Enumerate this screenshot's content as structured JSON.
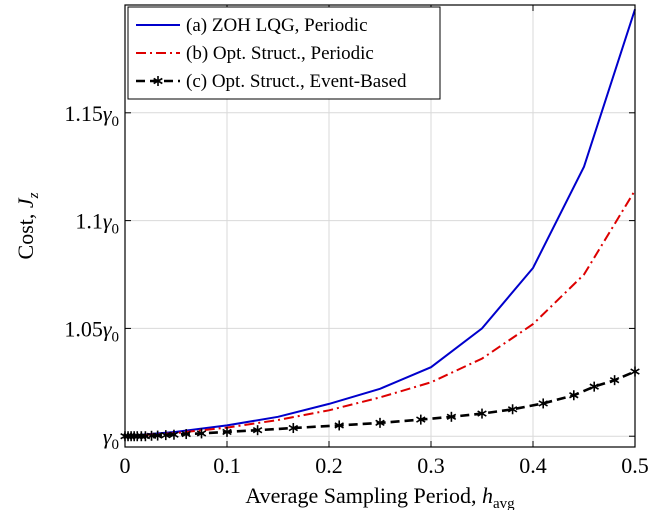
{
  "chart_data": {
    "type": "line",
    "xlabel_text": "Average Sampling Period,",
    "xlabel_symbol": "h",
    "xlabel_sub": "avg",
    "ylabel_text": "Cost,",
    "ylabel_symbol": "J",
    "ylabel_sub": "z",
    "xlim": [
      0,
      0.5
    ],
    "ylim": [
      0.995,
      1.2
    ],
    "x_ticks": [
      0,
      0.1,
      0.2,
      0.3,
      0.4,
      0.5
    ],
    "x_tick_labels": [
      "0",
      "0.1",
      "0.2",
      "0.3",
      "0.4",
      "0.5"
    ],
    "y_ticks": [
      1.0,
      1.05,
      1.1,
      1.15
    ],
    "y_tick_labels": [
      {
        "num": "",
        "sym": "γ",
        "sub": "0"
      },
      {
        "num": "1.05",
        "sym": "γ",
        "sub": "0"
      },
      {
        "num": "1.1",
        "sym": "γ",
        "sub": "0"
      },
      {
        "num": "1.15",
        "sym": "γ",
        "sub": "0"
      }
    ],
    "grid": true,
    "legend_position": "top-left",
    "series": [
      {
        "name": "(a) ZOH LQG, Periodic",
        "color": "#0000cc",
        "style": "solid",
        "marker": "none",
        "x": [
          0,
          0.05,
          0.1,
          0.15,
          0.2,
          0.25,
          0.3,
          0.35,
          0.4,
          0.45,
          0.5
        ],
        "y": [
          1.0,
          1.002,
          1.005,
          1.009,
          1.015,
          1.022,
          1.032,
          1.05,
          1.078,
          1.125,
          1.198
        ]
      },
      {
        "name": "(b) Opt. Struct., Periodic",
        "color": "#dd0000",
        "style": "dashdot",
        "marker": "none",
        "x": [
          0,
          0.05,
          0.1,
          0.15,
          0.2,
          0.25,
          0.3,
          0.35,
          0.4,
          0.45,
          0.5
        ],
        "y": [
          1.0,
          1.0015,
          1.004,
          1.0075,
          1.012,
          1.018,
          1.025,
          1.036,
          1.052,
          1.075,
          1.114
        ]
      },
      {
        "name": "(c) Opt. Struct., Event-Based",
        "color": "#000000",
        "style": "dashed",
        "marker": "asterisk",
        "x": [
          0,
          0.003,
          0.006,
          0.009,
          0.012,
          0.016,
          0.02,
          0.026,
          0.032,
          0.04,
          0.048,
          0.06,
          0.075,
          0.1,
          0.13,
          0.165,
          0.21,
          0.25,
          0.29,
          0.32,
          0.35,
          0.38,
          0.41,
          0.44,
          0.46,
          0.48,
          0.5
        ],
        "y": [
          1.0,
          1.0,
          1.0,
          1.0,
          1.0,
          1.0,
          1.0,
          1.0002,
          1.0003,
          1.0005,
          1.0007,
          1.001,
          1.0013,
          1.002,
          1.0028,
          1.0038,
          1.005,
          1.0062,
          1.0077,
          1.009,
          1.0105,
          1.0125,
          1.0152,
          1.019,
          1.023,
          1.026,
          1.03
        ]
      }
    ]
  }
}
